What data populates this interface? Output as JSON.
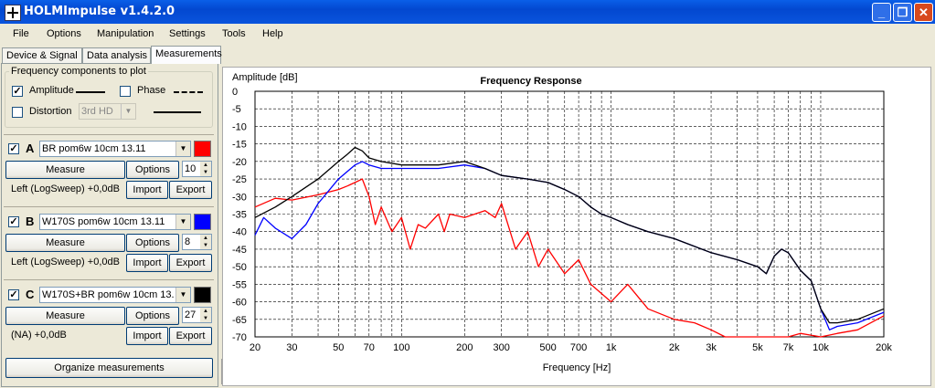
{
  "window": {
    "title": "HOLMImpulse  v1.4.2.0"
  },
  "menu": [
    "File",
    "Options",
    "Manipulation",
    "Settings",
    "Tools",
    "Help"
  ],
  "tabs": [
    "Device & Signal",
    "Data analysis",
    "Measurements"
  ],
  "active_tab": "Measurements",
  "components": {
    "title": "Frequency components to plot",
    "amplitude": {
      "label": "Amplitude",
      "checked": true
    },
    "phase": {
      "label": "Phase",
      "checked": false
    },
    "distortion": {
      "label": "Distortion",
      "checked": false,
      "select": "3rd HD"
    }
  },
  "measurements": [
    {
      "letter": "A",
      "checked": true,
      "name": "BR pom6w 10cm 13.11",
      "color": "#ff0000",
      "measure": "Measure",
      "options": "Options",
      "value": "10",
      "info": "Left (LogSweep) +0,0dB",
      "import": "Import",
      "export": "Export"
    },
    {
      "letter": "B",
      "checked": true,
      "name": "W170S pom6w 10cm 13.11",
      "color": "#0000ff",
      "measure": "Measure",
      "options": "Options",
      "value": "8",
      "info": "Left (LogSweep) +0,0dB",
      "import": "Import",
      "export": "Export"
    },
    {
      "letter": "C",
      "checked": true,
      "name": "W170S+BR pom6w 10cm 13.",
      "color": "#000000",
      "measure": "Measure",
      "options": "Options",
      "value": "27",
      "info": "(NA) +0,0dB",
      "import": "Import",
      "export": "Export"
    }
  ],
  "organize_label": "Organize measurements",
  "chart_data": {
    "type": "line",
    "title": "Frequency Response",
    "xlabel": "Frequency [Hz]",
    "ylabel": "Amplitude [dB]",
    "xscale": "log",
    "xlim": [
      20,
      20000
    ],
    "ylim": [
      -70,
      0
    ],
    "grid": true,
    "xticks": [
      20,
      30,
      50,
      70,
      100,
      200,
      300,
      500,
      700,
      1000,
      2000,
      3000,
      5000,
      7000,
      10000,
      20000
    ],
    "xtick_labels": [
      "20",
      "30",
      "50",
      "70",
      "100",
      "200",
      "300",
      "500",
      "700",
      "1k",
      "2k",
      "3k",
      "5k",
      "7k",
      "10k",
      "20k"
    ],
    "yticks": [
      0,
      -5,
      -10,
      -15,
      -20,
      -25,
      -30,
      -35,
      -40,
      -45,
      -50,
      -55,
      -60,
      -65,
      -70
    ],
    "series": [
      {
        "color": "#ff0000",
        "x": [
          20,
          25,
          30,
          40,
          50,
          55,
          60,
          65,
          70,
          75,
          80,
          90,
          100,
          110,
          120,
          130,
          150,
          160,
          170,
          200,
          250,
          280,
          300,
          350,
          400,
          450,
          500,
          600,
          700,
          800,
          1000,
          1200,
          1500,
          2000,
          2500,
          3000,
          3500,
          4000,
          6000,
          7000,
          8000,
          10000,
          12000,
          15000,
          20000
        ],
        "y": [
          -33,
          -30.5,
          -31,
          -29.5,
          -28,
          -27,
          -26,
          -25,
          -30,
          -38,
          -33,
          -40,
          -36,
          -45,
          -38,
          -39,
          -35,
          -40,
          -35,
          -36,
          -34,
          -36,
          -32,
          -45,
          -40,
          -50,
          -45,
          -52,
          -48,
          -55,
          -60,
          -55,
          -62,
          -65,
          -66,
          -68,
          -70,
          -70,
          -70,
          -70,
          -69,
          -70,
          -69,
          -68,
          -64
        ]
      },
      {
        "color": "#0000ff",
        "x": [
          20,
          22,
          25,
          30,
          35,
          40,
          50,
          60,
          65,
          70,
          80,
          100,
          150,
          200,
          250,
          300,
          400,
          500,
          600,
          700,
          800,
          900,
          1000,
          1200,
          1500,
          2000,
          3000,
          4000,
          5000,
          5500,
          6000,
          6500,
          7000,
          8000,
          9000,
          10000,
          11000,
          12000,
          15000,
          20000
        ],
        "y": [
          -41,
          -36,
          -39,
          -42,
          -38,
          -32,
          -25,
          -21,
          -20,
          -21,
          -22,
          -22,
          -22,
          -21,
          -22,
          -24,
          -25,
          -26,
          -28,
          -30,
          -33,
          -35,
          -36,
          -38,
          -40,
          -42,
          -46,
          -48,
          -50,
          -52,
          -47,
          -45,
          -46,
          -51,
          -54,
          -62,
          -68,
          -67,
          -66,
          -63
        ]
      },
      {
        "color": "#000000",
        "x": [
          20,
          25,
          30,
          40,
          50,
          55,
          60,
          65,
          70,
          80,
          100,
          150,
          200,
          250,
          300,
          400,
          500,
          600,
          700,
          800,
          900,
          1000,
          1200,
          1500,
          2000,
          3000,
          4000,
          5000,
          5500,
          6000,
          6500,
          7000,
          8000,
          9000,
          10000,
          11000,
          12000,
          15000,
          20000
        ],
        "y": [
          -36,
          -33,
          -30,
          -25,
          -20,
          -18,
          -16,
          -17,
          -19,
          -20,
          -21,
          -21,
          -20,
          -22,
          -24,
          -25,
          -26,
          -28,
          -30,
          -33,
          -35,
          -36,
          -38,
          -40,
          -42,
          -46,
          -48,
          -50,
          -52,
          -47,
          -45,
          -46,
          -51,
          -54,
          -62,
          -66,
          -66,
          -65,
          -62
        ]
      }
    ]
  }
}
